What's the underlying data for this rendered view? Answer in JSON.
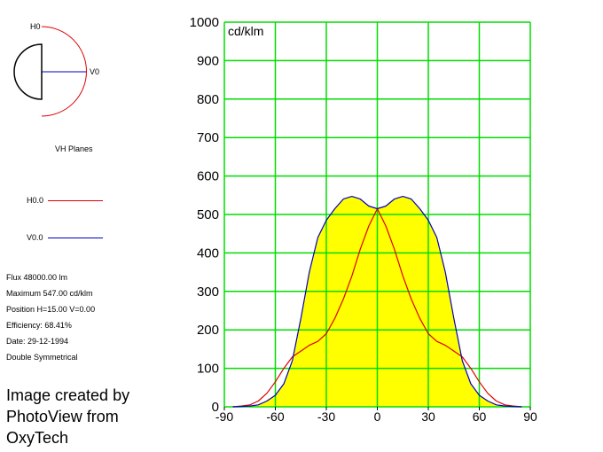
{
  "diagram": {
    "h_label": "H0",
    "v_label": "V0",
    "caption": "VH Planes"
  },
  "legend": {
    "items": [
      {
        "label": "H0.0",
        "color": "#e00000"
      },
      {
        "label": "V0.0",
        "color": "#0000c0"
      }
    ]
  },
  "info": {
    "flux": "Flux 48000.00  lm",
    "maximum": "Maximum 547.00  cd/klm",
    "position": "Position H=15.00 V=0.00",
    "efficiency": "Efficiency:  68.41%",
    "date": "Date: 29-12-1994",
    "symmetry": "Double Symmetrical"
  },
  "credit": {
    "line1": "Image created by",
    "line2": "PhotoView from",
    "line3": "OxyTech"
  },
  "chart_data": {
    "type": "line",
    "unit_label": "cd/klm",
    "xlim": [
      -90,
      90
    ],
    "ylim": [
      0,
      1000
    ],
    "x_ticks": [
      -90,
      -60,
      -30,
      0,
      30,
      60,
      90
    ],
    "y_ticks": [
      0,
      100,
      200,
      300,
      400,
      500,
      600,
      700,
      800,
      900,
      1000
    ],
    "grid": true,
    "grid_color": "#00dd00",
    "fill_color": "#ffff00",
    "series": [
      {
        "name": "V0.0",
        "color": "#0000c0",
        "x": [
          -85,
          -80,
          -75,
          -70,
          -65,
          -60,
          -55,
          -50,
          -45,
          -40,
          -35,
          -30,
          -25,
          -20,
          -15,
          -10,
          -5,
          0,
          5,
          10,
          15,
          20,
          25,
          30,
          35,
          40,
          45,
          50,
          55,
          60,
          65,
          70,
          75,
          80,
          85
        ],
        "y": [
          0,
          1,
          2,
          5,
          15,
          30,
          60,
          120,
          230,
          350,
          440,
          485,
          515,
          540,
          547,
          540,
          522,
          515,
          522,
          540,
          547,
          540,
          515,
          485,
          440,
          350,
          230,
          120,
          60,
          30,
          15,
          5,
          2,
          1,
          0
        ]
      },
      {
        "name": "H0.0",
        "color": "#e00000",
        "x": [
          -85,
          -80,
          -75,
          -70,
          -65,
          -60,
          -55,
          -50,
          -45,
          -40,
          -35,
          -30,
          -25,
          -20,
          -15,
          -10,
          -5,
          0,
          5,
          10,
          15,
          20,
          25,
          30,
          35,
          40,
          45,
          50,
          55,
          60,
          65,
          70,
          75,
          80,
          85
        ],
        "y": [
          0,
          2,
          5,
          15,
          35,
          65,
          100,
          130,
          145,
          160,
          170,
          190,
          230,
          280,
          340,
          410,
          470,
          515,
          470,
          410,
          340,
          280,
          230,
          190,
          170,
          160,
          145,
          130,
          100,
          65,
          35,
          15,
          5,
          2,
          0
        ]
      }
    ]
  }
}
